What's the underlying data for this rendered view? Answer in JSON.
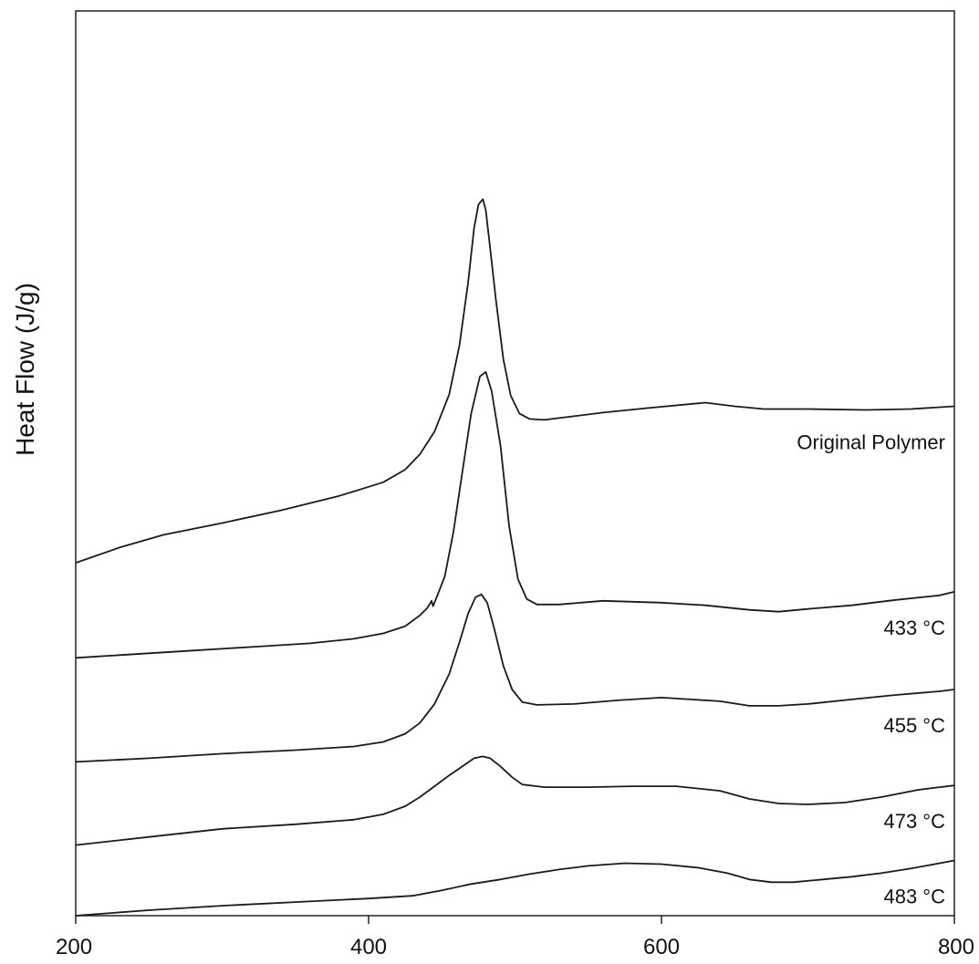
{
  "chart_data": {
    "type": "line",
    "xlabel": "",
    "ylabel": "Heat Flow (J/g)",
    "xlim": [
      200,
      800
    ],
    "x_ticks": [
      200,
      400,
      600,
      800
    ],
    "x_tick_labels": [
      "200",
      "400",
      "600",
      "800"
    ],
    "y_ticks": [],
    "grid": false,
    "legend": "none",
    "line_color": "#1a1a1a",
    "series": [
      {
        "name": "Original Polymer",
        "points": [
          [
            200,
            0.61
          ],
          [
            230,
            0.593
          ],
          [
            260,
            0.579
          ],
          [
            300,
            0.566
          ],
          [
            340,
            0.552
          ],
          [
            380,
            0.536
          ],
          [
            410,
            0.521
          ],
          [
            425,
            0.507
          ],
          [
            435,
            0.49
          ],
          [
            445,
            0.465
          ],
          [
            455,
            0.424
          ],
          [
            462,
            0.37
          ],
          [
            468,
            0.3
          ],
          [
            472,
            0.24
          ],
          [
            475,
            0.214
          ],
          [
            478,
            0.208
          ],
          [
            480,
            0.22
          ],
          [
            483,
            0.262
          ],
          [
            487,
            0.32
          ],
          [
            492,
            0.385
          ],
          [
            497,
            0.425
          ],
          [
            503,
            0.445
          ],
          [
            510,
            0.451
          ],
          [
            520,
            0.452
          ],
          [
            540,
            0.448
          ],
          [
            560,
            0.444
          ],
          [
            590,
            0.439
          ],
          [
            630,
            0.433
          ],
          [
            650,
            0.437
          ],
          [
            670,
            0.44
          ],
          [
            700,
            0.44
          ],
          [
            740,
            0.441
          ],
          [
            770,
            0.44
          ],
          [
            800,
            0.437
          ]
        ]
      },
      {
        "name": "433 °C",
        "points": [
          [
            200,
            0.715
          ],
          [
            240,
            0.711
          ],
          [
            280,
            0.707
          ],
          [
            320,
            0.703
          ],
          [
            360,
            0.699
          ],
          [
            390,
            0.694
          ],
          [
            410,
            0.688
          ],
          [
            425,
            0.68
          ],
          [
            435,
            0.668
          ],
          [
            440,
            0.66
          ],
          [
            442,
            0.655
          ],
          [
            443,
            0.652
          ],
          [
            444,
            0.658
          ],
          [
            446,
            0.65
          ],
          [
            452,
            0.625
          ],
          [
            458,
            0.575
          ],
          [
            464,
            0.51
          ],
          [
            470,
            0.445
          ],
          [
            476,
            0.404
          ],
          [
            480,
            0.399
          ],
          [
            484,
            0.42
          ],
          [
            490,
            0.48
          ],
          [
            496,
            0.57
          ],
          [
            502,
            0.628
          ],
          [
            508,
            0.65
          ],
          [
            515,
            0.656
          ],
          [
            530,
            0.656
          ],
          [
            560,
            0.652
          ],
          [
            600,
            0.654
          ],
          [
            630,
            0.657
          ],
          [
            660,
            0.662
          ],
          [
            680,
            0.664
          ],
          [
            700,
            0.661
          ],
          [
            730,
            0.657
          ],
          [
            760,
            0.651
          ],
          [
            790,
            0.646
          ],
          [
            800,
            0.642
          ]
        ]
      },
      {
        "name": "455 °C",
        "points": [
          [
            200,
            0.83
          ],
          [
            250,
            0.826
          ],
          [
            300,
            0.821
          ],
          [
            350,
            0.817
          ],
          [
            390,
            0.813
          ],
          [
            410,
            0.808
          ],
          [
            425,
            0.799
          ],
          [
            435,
            0.787
          ],
          [
            445,
            0.766
          ],
          [
            455,
            0.733
          ],
          [
            462,
            0.698
          ],
          [
            468,
            0.666
          ],
          [
            473,
            0.648
          ],
          [
            477,
            0.645
          ],
          [
            481,
            0.654
          ],
          [
            486,
            0.684
          ],
          [
            492,
            0.724
          ],
          [
            498,
            0.75
          ],
          [
            505,
            0.764
          ],
          [
            515,
            0.767
          ],
          [
            540,
            0.766
          ],
          [
            570,
            0.762
          ],
          [
            600,
            0.759
          ],
          [
            640,
            0.763
          ],
          [
            660,
            0.768
          ],
          [
            680,
            0.768
          ],
          [
            700,
            0.766
          ],
          [
            730,
            0.761
          ],
          [
            760,
            0.756
          ],
          [
            790,
            0.752
          ],
          [
            800,
            0.75
          ]
        ]
      },
      {
        "name": "473 °C",
        "points": [
          [
            200,
            0.922
          ],
          [
            250,
            0.913
          ],
          [
            300,
            0.904
          ],
          [
            350,
            0.899
          ],
          [
            390,
            0.894
          ],
          [
            410,
            0.888
          ],
          [
            425,
            0.879
          ],
          [
            435,
            0.869
          ],
          [
            445,
            0.857
          ],
          [
            455,
            0.845
          ],
          [
            465,
            0.834
          ],
          [
            472,
            0.826
          ],
          [
            478,
            0.824
          ],
          [
            483,
            0.826
          ],
          [
            490,
            0.835
          ],
          [
            498,
            0.847
          ],
          [
            505,
            0.855
          ],
          [
            520,
            0.858
          ],
          [
            550,
            0.858
          ],
          [
            580,
            0.857
          ],
          [
            610,
            0.857
          ],
          [
            640,
            0.862
          ],
          [
            660,
            0.871
          ],
          [
            680,
            0.876
          ],
          [
            700,
            0.877
          ],
          [
            725,
            0.875
          ],
          [
            750,
            0.869
          ],
          [
            775,
            0.861
          ],
          [
            790,
            0.858
          ],
          [
            800,
            0.856
          ]
        ]
      },
      {
        "name": "483 °C",
        "points": [
          [
            200,
            1.0
          ],
          [
            250,
            0.994
          ],
          [
            300,
            0.989
          ],
          [
            350,
            0.985
          ],
          [
            400,
            0.981
          ],
          [
            430,
            0.978
          ],
          [
            450,
            0.972
          ],
          [
            470,
            0.965
          ],
          [
            490,
            0.96
          ],
          [
            510,
            0.954
          ],
          [
            530,
            0.949
          ],
          [
            550,
            0.945
          ],
          [
            575,
            0.942
          ],
          [
            600,
            0.943
          ],
          [
            625,
            0.947
          ],
          [
            645,
            0.953
          ],
          [
            660,
            0.96
          ],
          [
            675,
            0.963
          ],
          [
            690,
            0.963
          ],
          [
            710,
            0.96
          ],
          [
            730,
            0.957
          ],
          [
            750,
            0.953
          ],
          [
            770,
            0.948
          ],
          [
            790,
            0.942
          ],
          [
            800,
            0.939
          ]
        ]
      }
    ],
    "annotations": [
      {
        "text": "Original Polymer",
        "series": 0
      },
      {
        "text": "433 °C",
        "series": 1
      },
      {
        "text": "455 °C",
        "series": 2
      },
      {
        "text": "473 °C",
        "series": 3
      },
      {
        "text": "483 °C",
        "series": 4
      }
    ]
  }
}
